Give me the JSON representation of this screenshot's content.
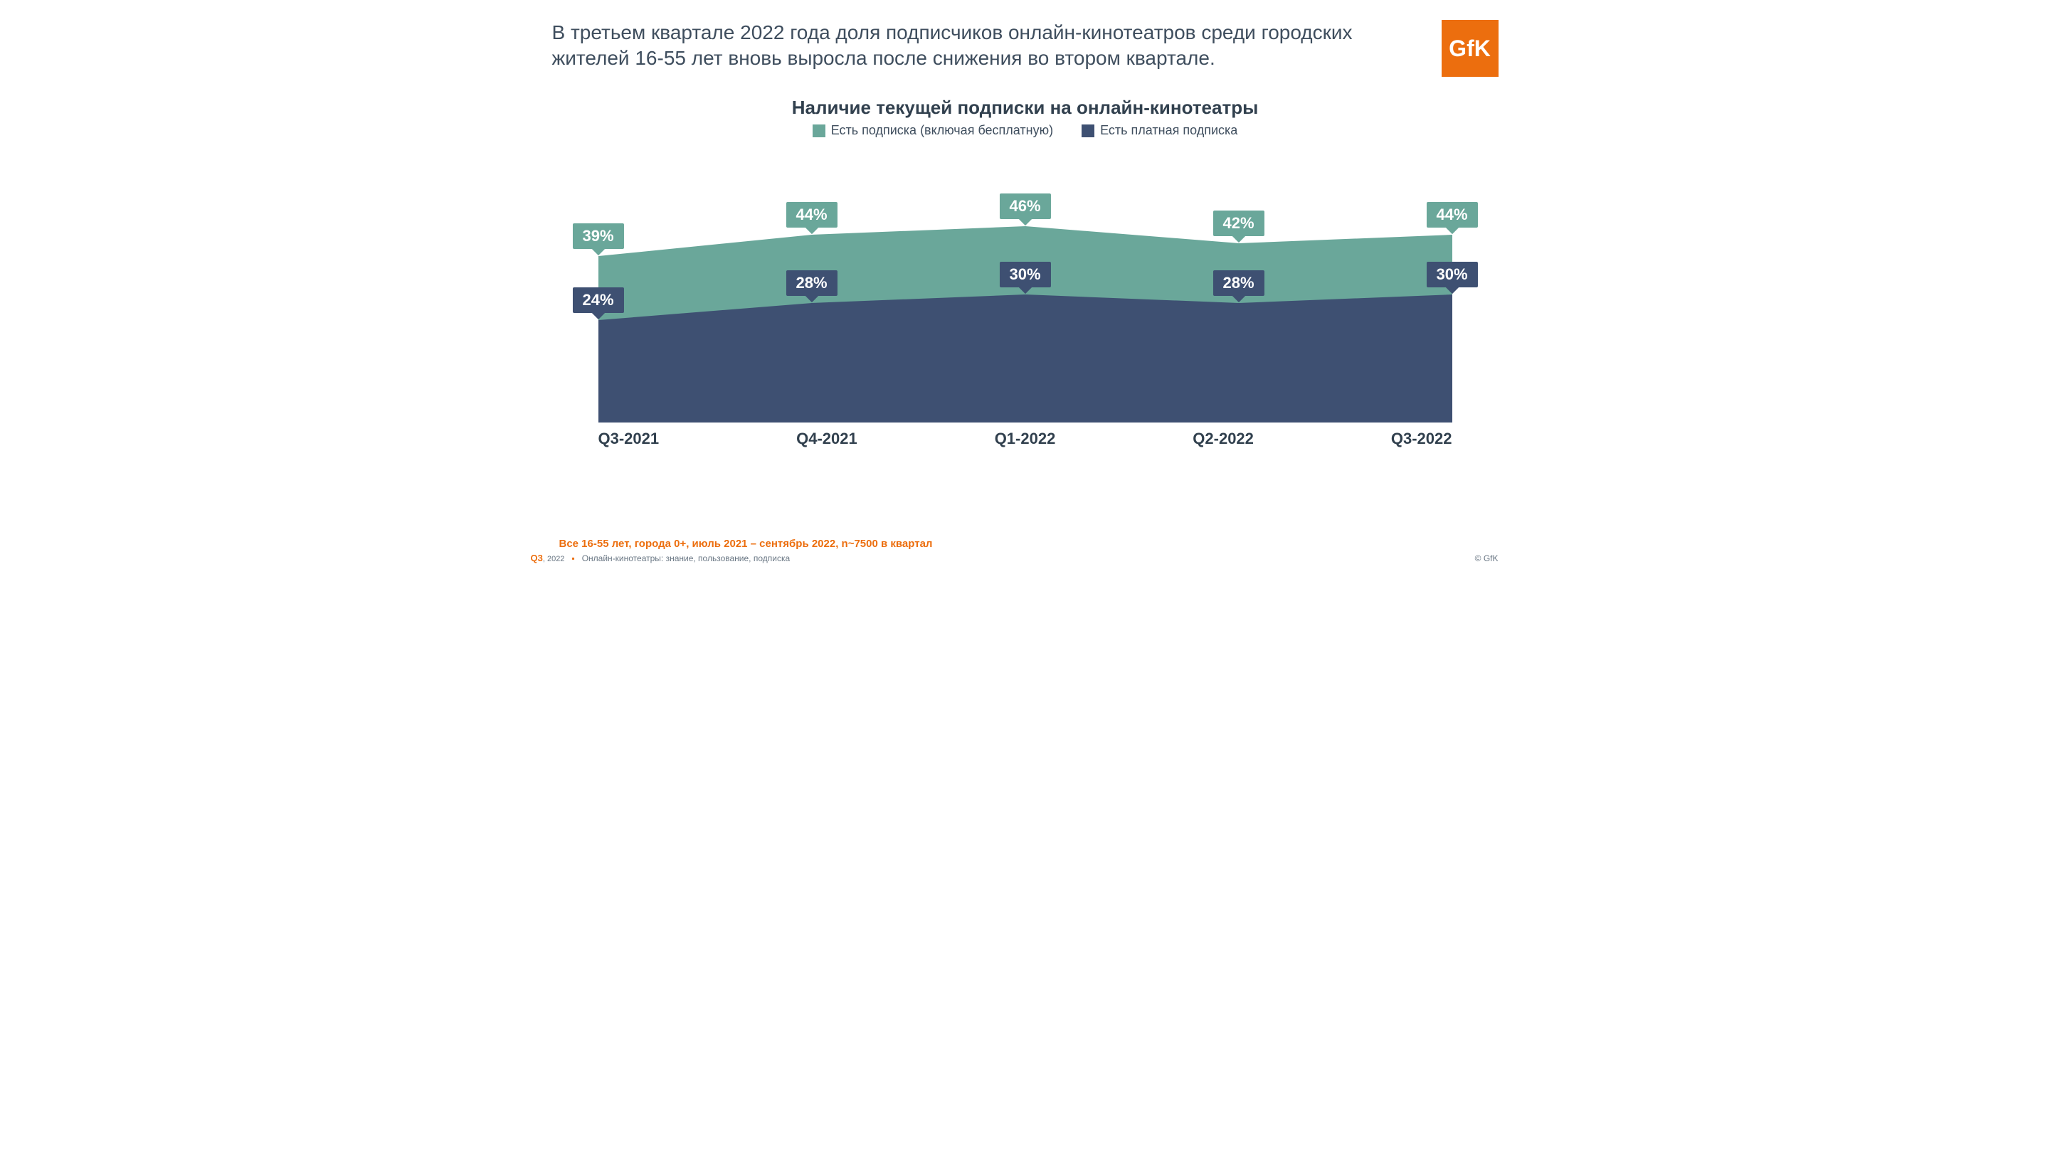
{
  "headline": "В третьем квартале 2022 года доля подписчиков онлайн-кинотеатров среди городских жителей 16-55 лет вновь выросла после снижения во втором квартале.",
  "logo_text": "GfK",
  "logo_bg": "#ec6e0e",
  "logo_fg": "#ffffff",
  "chart": {
    "type": "area",
    "title": "Наличие текущей подписки на онлайн-кинотеатры",
    "title_fontsize": 26,
    "legend": [
      {
        "label": "Есть подписка (включая бесплатную)",
        "color": "#6aa79a"
      },
      {
        "label": "Есть платная подписка",
        "color": "#3e5072"
      }
    ],
    "categories": [
      "Q3-2021",
      "Q4-2021",
      "Q1-2022",
      "Q2-2022",
      "Q3-2022"
    ],
    "series_total": {
      "values": [
        39,
        44,
        46,
        42,
        44
      ],
      "color": "#6aa79a",
      "callout_bg": "#6aa79a",
      "callout_fg": "#ffffff"
    },
    "series_paid": {
      "values": [
        24,
        28,
        30,
        28,
        30
      ],
      "color": "#3e5072",
      "callout_bg": "#3e5072",
      "callout_fg": "#ffffff"
    },
    "y_max_for_plot": 60,
    "y_min_for_plot": 0,
    "background_color": "#ffffff",
    "label_fontsize": 22,
    "axis_fontsize": 22,
    "axis_fontweight": 700
  },
  "footer": {
    "note": "Все 16-55 лет, города 0+, июль 2021 – сентябрь 2022, n~7500 в квартал",
    "note_color": "#ec6e0e",
    "quarter_label": "Q3",
    "year_label": ", 2022",
    "source": "Онлайн-кинотеатры: знание, пользование, подписка",
    "copyright": "© GfK"
  }
}
